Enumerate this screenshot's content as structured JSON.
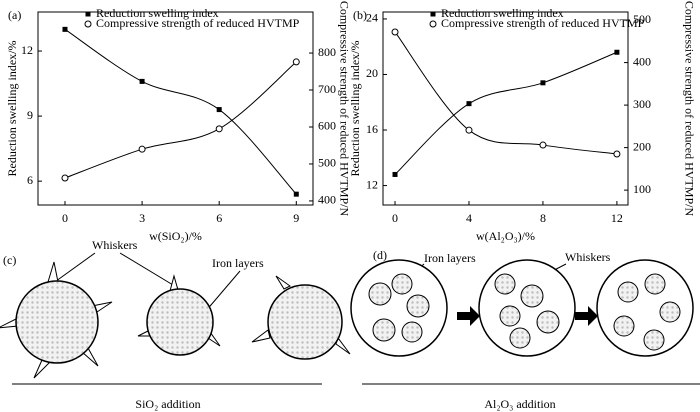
{
  "chart_data": [
    {
      "type": "line",
      "panel": "(a)",
      "x_label": "w(SiO₂)/%",
      "y_label": "Reduction swelling index/%",
      "y2_label": "Compressive strength of reduced HVTMP/N",
      "x": [
        0,
        3,
        6,
        9
      ],
      "xlim": [
        -1.05,
        9.65
      ],
      "xticks": [
        0,
        3,
        6,
        9
      ],
      "ylim": [
        4.9,
        13.8
      ],
      "yticks": [
        6,
        9,
        12
      ],
      "y2lim": [
        389,
        911
      ],
      "y2ticks": [
        400,
        500,
        600,
        700,
        800
      ],
      "legend": "upper center",
      "series": [
        {
          "name": "Reduction swelling index",
          "color": "#000000",
          "marker": "square",
          "values": [
            13.0,
            10.6,
            9.3,
            5.4
          ]
        },
        {
          "name": "Compressive strength of reduced HVTMP",
          "color": "#000000",
          "marker": "circle",
          "axis": "y2",
          "values": [
            462,
            540,
            595,
            776
          ]
        }
      ]
    },
    {
      "type": "line",
      "panel": "(b)",
      "x_label": "w(Al₂O₃)/%",
      "y_label": "Reduction swelling index/%",
      "y2_label": "Compressive strength of reduced HVTMP/N",
      "x": [
        0,
        4,
        8,
        12
      ],
      "xlim": [
        -0.65,
        12.6
      ],
      "xticks": [
        0,
        4,
        8,
        12
      ],
      "ylim": [
        10.6,
        24.5
      ],
      "yticks": [
        12,
        16,
        20,
        24
      ],
      "y2lim": [
        65,
        519
      ],
      "y2ticks": [
        100,
        200,
        300,
        400,
        500
      ],
      "legend": "upper center",
      "series": [
        {
          "name": "Reduction swelling index",
          "color": "#000000",
          "marker": "square",
          "values": [
            12.8,
            17.9,
            19.4,
            21.6
          ]
        },
        {
          "name": "Compressive strength of reduced HVTMP",
          "color": "#000000",
          "marker": "circle",
          "axis": "y2",
          "values": [
            472,
            241,
            206,
            185
          ]
        }
      ]
    }
  ],
  "diagram": {
    "c": {
      "label": "(c)",
      "whiskers": "Whiskers",
      "iron_layers": "Iron layers",
      "caption": "SiO₂ addition"
    },
    "d": {
      "label": "(d)",
      "iron_layers": "Iron layers",
      "whiskers": "Whiskers",
      "caption": "Al₂O₃ addition"
    }
  }
}
